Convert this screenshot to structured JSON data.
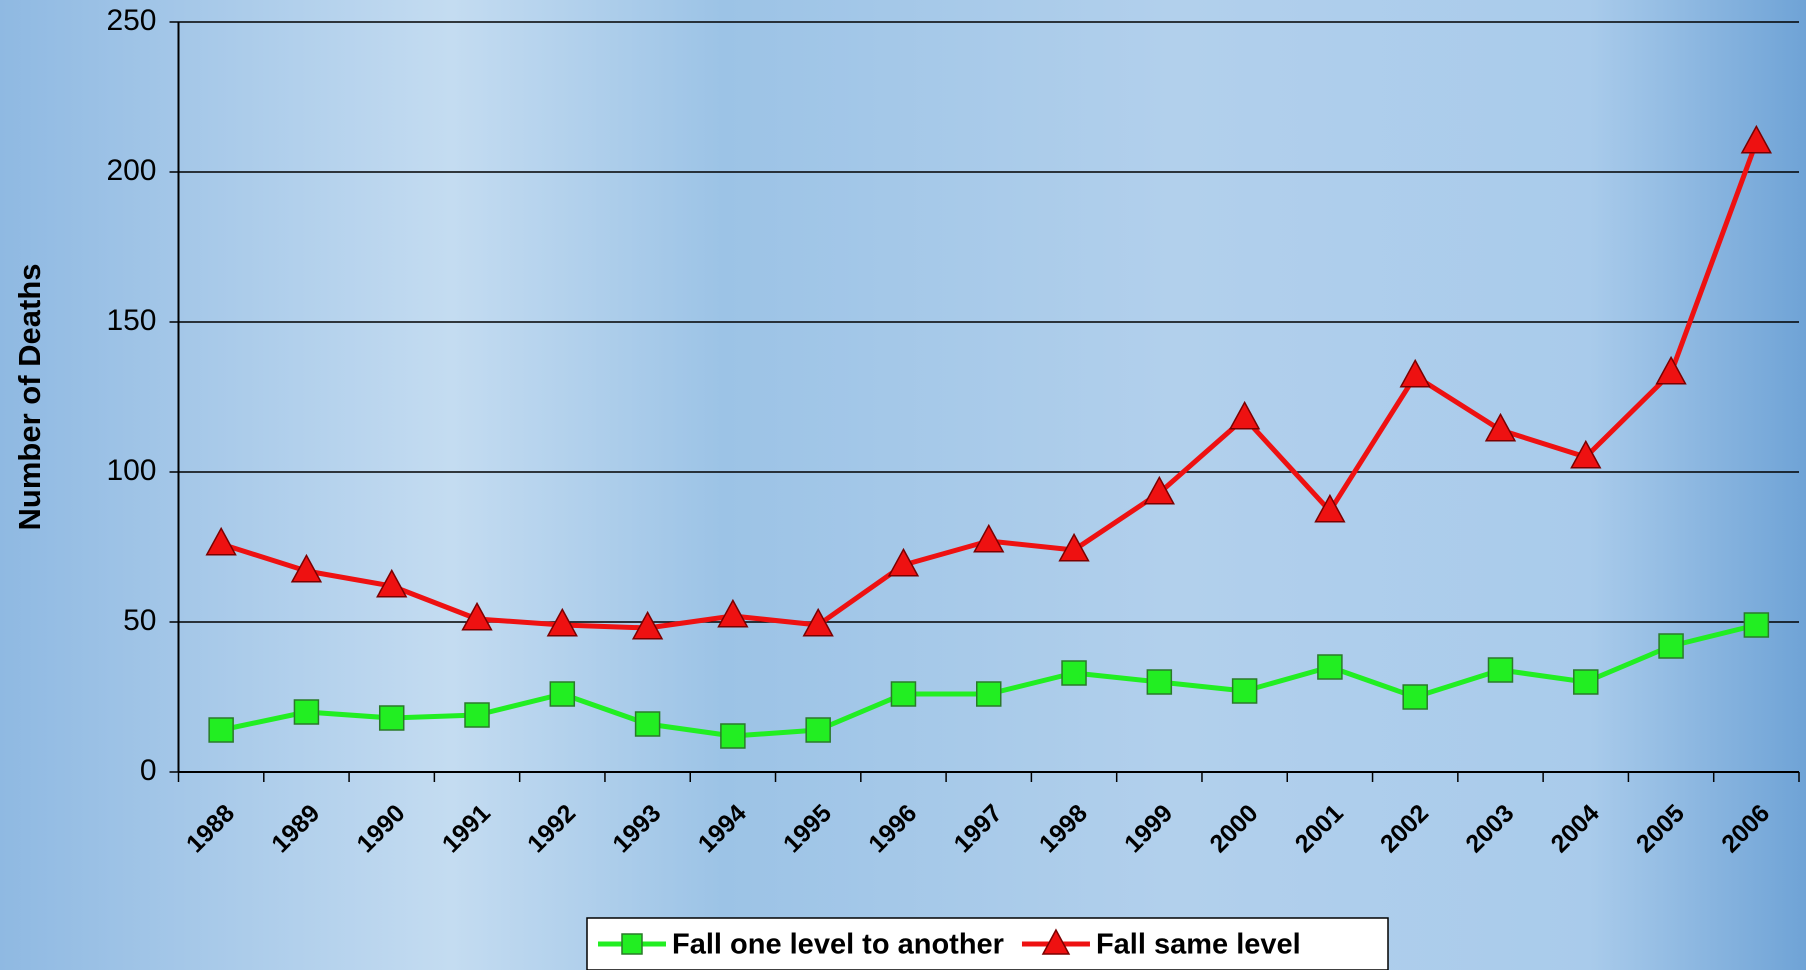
{
  "chart_data": {
    "type": "line",
    "ylabel": "Number of Deaths",
    "categories": [
      "1988",
      "1989",
      "1990",
      "1991",
      "1992",
      "1993",
      "1994",
      "1995",
      "1996",
      "1997",
      "1998",
      "1999",
      "2000",
      "2001",
      "2002",
      "2003",
      "2004",
      "2005",
      "2006"
    ],
    "series": [
      {
        "name": "Fall one level to another",
        "color": "#22ee22",
        "marker": "square",
        "values": [
          14,
          20,
          18,
          19,
          26,
          16,
          12,
          14,
          26,
          26,
          33,
          30,
          27,
          35,
          25,
          34,
          30,
          42,
          49
        ]
      },
      {
        "name": "Fall same level",
        "color": "#ee1111",
        "marker": "triangle",
        "values": [
          76,
          67,
          62,
          51,
          49,
          48,
          52,
          49,
          69,
          77,
          74,
          93,
          118,
          87,
          132,
          114,
          105,
          133,
          210
        ]
      }
    ],
    "ylim": [
      0,
      250
    ],
    "yticks": [
      0,
      50,
      100,
      150,
      200,
      250
    ],
    "grid": true,
    "legend": "bottom"
  }
}
